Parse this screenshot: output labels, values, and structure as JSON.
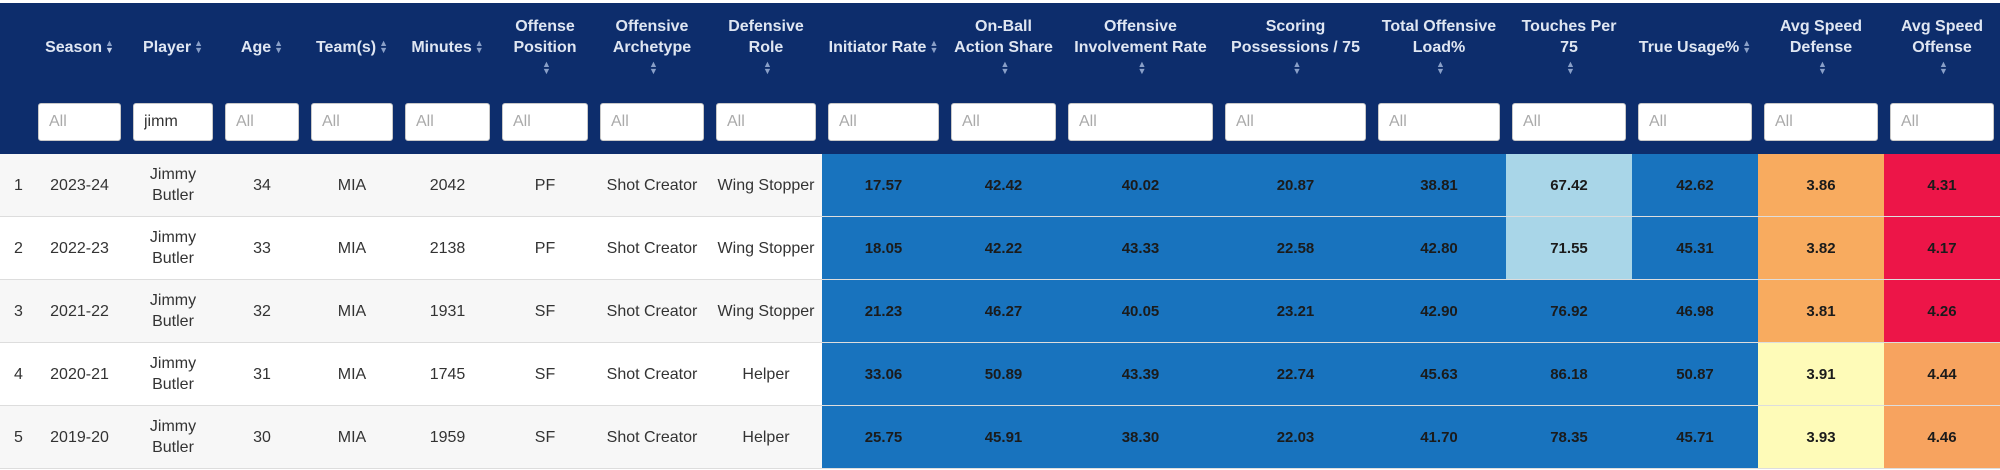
{
  "columns": [
    {
      "key": "index",
      "label": ""
    },
    {
      "key": "season",
      "label": "Season"
    },
    {
      "key": "player",
      "label": "Player"
    },
    {
      "key": "age",
      "label": "Age"
    },
    {
      "key": "teams",
      "label": "Team(s)"
    },
    {
      "key": "minutes",
      "label": "Minutes"
    },
    {
      "key": "offense_position",
      "label": "Offense Position"
    },
    {
      "key": "offensive_archetype",
      "label": "Offensive Archetype"
    },
    {
      "key": "defensive_role",
      "label": "Defensive Role"
    },
    {
      "key": "initiator_rate",
      "label": "Initiator Rate"
    },
    {
      "key": "on_ball_action_share",
      "label": "On-Ball Action Share"
    },
    {
      "key": "offensive_involvement_rate",
      "label": "Offensive Involvement Rate"
    },
    {
      "key": "scoring_possessions_75",
      "label": "Scoring Possessions / 75"
    },
    {
      "key": "total_offensive_load",
      "label": "Total Offensive Load%"
    },
    {
      "key": "touches_per_75",
      "label": "Touches Per 75"
    },
    {
      "key": "true_usage",
      "label": "True Usage%"
    },
    {
      "key": "avg_speed_defense",
      "label": "Avg Speed Defense"
    },
    {
      "key": "avg_speed_offense",
      "label": "Avg Speed Offense"
    }
  ],
  "filters": {
    "placeholder": "All",
    "season": "",
    "player": "jimm",
    "age": "",
    "teams": "",
    "minutes": "",
    "offense_position": "",
    "offensive_archetype": "",
    "defensive_role": "",
    "initiator_rate": "",
    "on_ball_action_share": "",
    "offensive_involvement_rate": "",
    "scoring_possessions_75": "",
    "total_offensive_load": "",
    "touches_per_75": "",
    "true_usage": "",
    "avg_speed_defense": "",
    "avg_speed_offense": ""
  },
  "rows": [
    {
      "index": "1",
      "season": "2023-24",
      "player": "Jimmy Butler",
      "age": "34",
      "teams": "MIA",
      "minutes": "2042",
      "offense_position": "PF",
      "offensive_archetype": "Shot Creator",
      "defensive_role": "Wing Stopper",
      "initiator_rate": "17.57",
      "on_ball_action_share": "42.42",
      "offensive_involvement_rate": "40.02",
      "scoring_possessions_75": "20.87",
      "total_offensive_load": "38.81",
      "touches_per_75": "67.42",
      "true_usage": "42.62",
      "avg_speed_defense": "3.86",
      "avg_speed_offense": "4.31"
    },
    {
      "index": "2",
      "season": "2022-23",
      "player": "Jimmy Butler",
      "age": "33",
      "teams": "MIA",
      "minutes": "2138",
      "offense_position": "PF",
      "offensive_archetype": "Shot Creator",
      "defensive_role": "Wing Stopper",
      "initiator_rate": "18.05",
      "on_ball_action_share": "42.22",
      "offensive_involvement_rate": "43.33",
      "scoring_possessions_75": "22.58",
      "total_offensive_load": "42.80",
      "touches_per_75": "71.55",
      "true_usage": "45.31",
      "avg_speed_defense": "3.82",
      "avg_speed_offense": "4.17"
    },
    {
      "index": "3",
      "season": "2021-22",
      "player": "Jimmy Butler",
      "age": "32",
      "teams": "MIA",
      "minutes": "1931",
      "offense_position": "SF",
      "offensive_archetype": "Shot Creator",
      "defensive_role": "Wing Stopper",
      "initiator_rate": "21.23",
      "on_ball_action_share": "46.27",
      "offensive_involvement_rate": "40.05",
      "scoring_possessions_75": "23.21",
      "total_offensive_load": "42.90",
      "touches_per_75": "76.92",
      "true_usage": "46.98",
      "avg_speed_defense": "3.81",
      "avg_speed_offense": "4.26"
    },
    {
      "index": "4",
      "season": "2020-21",
      "player": "Jimmy Butler",
      "age": "31",
      "teams": "MIA",
      "minutes": "1745",
      "offense_position": "SF",
      "offensive_archetype": "Shot Creator",
      "defensive_role": "Helper",
      "initiator_rate": "33.06",
      "on_ball_action_share": "50.89",
      "offensive_involvement_rate": "43.39",
      "scoring_possessions_75": "22.74",
      "total_offensive_load": "45.63",
      "touches_per_75": "86.18",
      "true_usage": "50.87",
      "avg_speed_defense": "3.91",
      "avg_speed_offense": "4.44"
    },
    {
      "index": "5",
      "season": "2019-20",
      "player": "Jimmy Butler",
      "age": "30",
      "teams": "MIA",
      "minutes": "1959",
      "offense_position": "SF",
      "offensive_archetype": "Shot Creator",
      "defensive_role": "Helper",
      "initiator_rate": "25.75",
      "on_ball_action_share": "45.91",
      "offensive_involvement_rate": "38.30",
      "scoring_possessions_75": "22.03",
      "total_offensive_load": "41.70",
      "touches_per_75": "78.35",
      "true_usage": "45.71",
      "avg_speed_defense": "3.93",
      "avg_speed_offense": "4.46"
    }
  ],
  "cell_colors": {
    "blue": "#1873be",
    "light_blue": "#a9d6e8",
    "orange": "#f8ab5f",
    "light_yellow": "#fefbb8",
    "red": "#ed1548",
    "header_bg": "#0d2d6c"
  },
  "icons": {
    "sort": "sort-arrows-icon"
  }
}
